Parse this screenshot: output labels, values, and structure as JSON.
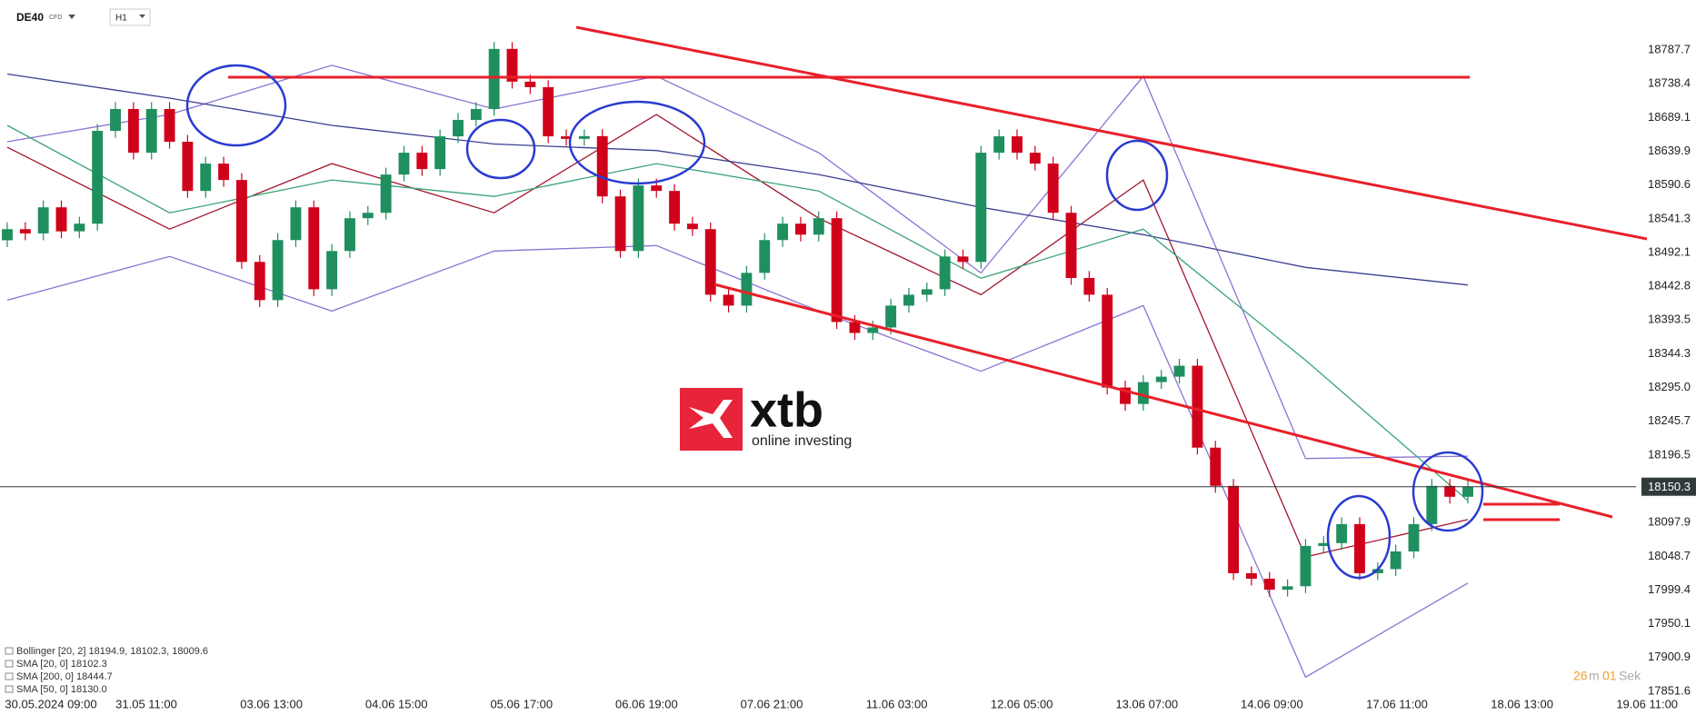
{
  "header": {
    "symbol": "DE40",
    "instrument": "CFD",
    "timeframe": "H1"
  },
  "logo": {
    "brand": "xtb",
    "tagline": "online investing"
  },
  "countdown": {
    "minutes": "26",
    "minutes_unit": "m",
    "seconds": "01",
    "seconds_unit": "Sek"
  },
  "legend": [
    "Bollinger  [20, 2]  18194.9,  18102.3,  18009.6",
    "SMA  [20, 0]  18102.3",
    "SMA  [200, 0]  18444.7",
    "SMA  [50, 0]  18130.0"
  ],
  "chart_data": {
    "type": "candlestick",
    "up_color": "#1f8f5f",
    "down_color": "#d0021b",
    "ylim": [
      17839.6,
      18860.7
    ],
    "yticks": [
      18787.7,
      18738.4,
      18689.1,
      18639.9,
      18590.6,
      18541.3,
      18492.1,
      18442.8,
      18393.5,
      18344.3,
      {
        "value": 18295.0,
        "label": "18295.0"
      },
      18245.7,
      18196.5,
      18097.9,
      18048.7,
      17999.4,
      17950.1,
      17900.9,
      17851.6
    ],
    "x_labels": [
      "30.05.2024  09:00",
      "31.05  11:00",
      "03.06  13:00",
      "04.06  15:00",
      "05.06  17:00",
      "06.06  19:00",
      "07.06  21:00",
      "11.06  03:00",
      "12.06  05:00",
      "13.06  07:00",
      "14.06  09:00",
      "17.06  11:00",
      "18.06  13:00",
      "19.06  11:00"
    ],
    "current_price": 18150.3,
    "ohlc": [
      [
        18510.0,
        18536.2,
        18500.0,
        18526.2
      ],
      [
        18526.2,
        18536.2,
        18510.0,
        18520.0
      ],
      [
        18520.0,
        18568.1,
        18510.0,
        18558.1
      ],
      [
        18558.1,
        18568.1,
        18513.0,
        18523.0
      ],
      [
        18523.0,
        18544.2,
        18513.0,
        18534.2
      ],
      [
        18534.2,
        18679.7,
        18524.2,
        18669.7
      ],
      [
        18669.7,
        18711.6,
        18659.7,
        18701.6
      ],
      [
        18701.6,
        18711.6,
        18627.8,
        18637.8
      ],
      [
        18637.8,
        18711.6,
        18627.8,
        18701.6
      ],
      [
        18701.6,
        18711.6,
        18643.8,
        18653.8
      ],
      [
        18653.8,
        18663.8,
        18572.0,
        18582.0
      ],
      [
        18582.0,
        18631.9,
        18572.0,
        18621.9
      ],
      [
        18621.9,
        18631.9,
        18588.0,
        18598.0
      ],
      [
        18598.0,
        18608.0,
        18468.4,
        18478.4
      ],
      [
        18478.4,
        18488.4,
        18412.6,
        18422.6
      ],
      [
        18422.6,
        18520.3,
        18412.6,
        18510.3
      ],
      [
        18510.3,
        18568.1,
        18500.3,
        18558.1
      ],
      [
        18558.1,
        18568.1,
        18428.5,
        18438.5
      ],
      [
        18438.5,
        18504.3,
        18428.5,
        18494.3
      ],
      [
        18494.3,
        18552.2,
        18484.3,
        18542.2
      ],
      [
        18542.2,
        18560.1,
        18532.2,
        18550.1
      ],
      [
        18550.1,
        18615.9,
        18540.1,
        18605.9
      ],
      [
        18605.9,
        18647.8,
        18595.9,
        18637.8
      ],
      [
        18637.8,
        18647.8,
        18603.9,
        18613.9
      ],
      [
        18613.9,
        18671.7,
        18603.9,
        18661.7
      ],
      [
        18661.7,
        18695.7,
        18651.7,
        18685.7
      ],
      [
        18685.7,
        18711.6,
        18675.7,
        18701.6
      ],
      [
        18701.6,
        18799.3,
        18691.6,
        18789.3
      ],
      [
        18789.3,
        18799.3,
        18731.5,
        18741.5
      ],
      [
        18741.5,
        18751.5,
        18723.5,
        18733.5
      ],
      [
        18733.5,
        18743.5,
        18651.7,
        18661.7
      ],
      [
        18661.7,
        18671.7,
        18648.0,
        18658.0
      ],
      [
        18658.0,
        18672.0,
        18648.0,
        18662.0
      ],
      [
        18662.0,
        18672.0,
        18564.0,
        18574.0
      ],
      [
        18574.0,
        18584.0,
        18484.3,
        18494.3
      ],
      [
        18494.3,
        18600.0,
        18484.3,
        18590.0
      ],
      [
        18590.0,
        18600.0,
        18572.0,
        18582.0
      ],
      [
        18582.0,
        18592.0,
        18524.2,
        18534.2
      ],
      [
        18534.2,
        18544.2,
        18516.2,
        18526.2
      ],
      [
        18526.2,
        18536.2,
        18420.5,
        18430.5
      ],
      [
        18430.5,
        18440.5,
        18404.6,
        18414.6
      ],
      [
        18414.6,
        18472.4,
        18404.6,
        18462.4
      ],
      [
        18462.4,
        18520.3,
        18452.4,
        18510.3
      ],
      [
        18510.3,
        18544.2,
        18500.3,
        18534.2
      ],
      [
        18534.2,
        18544.2,
        18508.2,
        18518.2
      ],
      [
        18518.2,
        18552.2,
        18508.2,
        18542.2
      ],
      [
        18542.2,
        18552.2,
        18380.7,
        18390.7
      ],
      [
        18390.7,
        18400.7,
        18364.7,
        18374.7
      ],
      [
        18374.7,
        18392.7,
        18364.7,
        18382.7
      ],
      [
        18382.7,
        18424.6,
        18372.7,
        18414.6
      ],
      [
        18414.6,
        18440.5,
        18404.6,
        18430.5
      ],
      [
        18430.5,
        18448.5,
        18420.5,
        18438.5
      ],
      [
        18438.5,
        18496.3,
        18428.5,
        18486.3
      ],
      [
        18486.3,
        18496.3,
        18468.4,
        18478.4
      ],
      [
        18478.4,
        18647.8,
        18468.4,
        18637.8
      ],
      [
        18637.8,
        18671.7,
        18627.8,
        18661.7
      ],
      [
        18661.7,
        18671.7,
        18627.8,
        18637.8
      ],
      [
        18637.8,
        18647.8,
        18611.9,
        18621.9
      ],
      [
        18621.9,
        18631.9,
        18540.1,
        18550.1
      ],
      [
        18550.1,
        18560.1,
        18445.0,
        18455.0
      ],
      [
        18455.0,
        18465.0,
        18420.5,
        18430.5
      ],
      [
        18430.5,
        18440.5,
        18285.0,
        18295.0
      ],
      [
        18295.0,
        18305.0,
        18261.1,
        18271.1
      ],
      [
        18271.1,
        18313.0,
        18261.1,
        18303.0
      ],
      [
        18303.0,
        18320.9,
        18293.0,
        18310.9
      ],
      [
        18310.9,
        18336.9,
        18300.9,
        18326.9
      ],
      [
        18326.9,
        18336.9,
        18197.3,
        18207.3
      ],
      [
        18207.3,
        18217.3,
        18141.5,
        18151.5
      ],
      [
        18151.5,
        18161.5,
        18014.0,
        18024.0
      ],
      [
        18024.0,
        18034.0,
        18006.0,
        18016.0
      ],
      [
        18016.0,
        18026.0,
        17990.0,
        18000.0
      ],
      [
        18000.0,
        18015.0,
        17990.0,
        18005.0
      ],
      [
        18005.0,
        18073.8,
        17995.0,
        18063.8
      ],
      [
        18063.8,
        18078.0,
        18053.8,
        18068.0
      ],
      [
        18068.0,
        18105.7,
        18058.0,
        18095.7
      ],
      [
        18095.7,
        18105.7,
        18014.0,
        18024.0
      ],
      [
        18024.0,
        18040.0,
        18014.0,
        18030.0
      ],
      [
        18030.0,
        18065.8,
        18020.0,
        18055.8
      ],
      [
        18055.8,
        18105.7,
        18045.8,
        18095.7
      ],
      [
        18095.7,
        18161.5,
        18085.7,
        18151.5
      ],
      [
        18151.5,
        18161.5,
        18125.6,
        18135.6
      ],
      [
        18135.6,
        18160.3,
        18125.6,
        18150.3
      ]
    ],
    "indicators": [
      {
        "color": "#8b74d4",
        "values": [
          18653.8,
          18693.6,
          18765.4,
          18701.6,
          18749.4,
          18637.8,
          18462.4,
          18749.4,
          18191.4,
          18194.9
        ]
      },
      {
        "color": "#8b74d4",
        "values": [
          18422.6,
          18486.3,
          18406.6,
          18494.3,
          18502.3,
          18406.6,
          18318.9,
          18414.6,
          17872.4,
          18009.6
        ]
      },
      {
        "color": "#a3172d",
        "values": [
          18645.8,
          18526.2,
          18621.9,
          18550.1,
          18693.6,
          18542.2,
          18430.5,
          18598.0,
          18047.8,
          18102.3
        ]
      },
      {
        "color": "#3b3f8f",
        "values": [
          18752.6,
          18717.5,
          18677.7,
          18650.5,
          18641.0,
          18605.9,
          18558.1,
          18518.2,
          18470.4,
          18444.7
        ]
      },
      {
        "color": "#3aa37a",
        "values": [
          18677.7,
          18550.1,
          18598.0,
          18574.0,
          18621.9,
          18582.0,
          18454.5,
          18526.2,
          18334.9,
          18130.0
        ]
      }
    ]
  }
}
